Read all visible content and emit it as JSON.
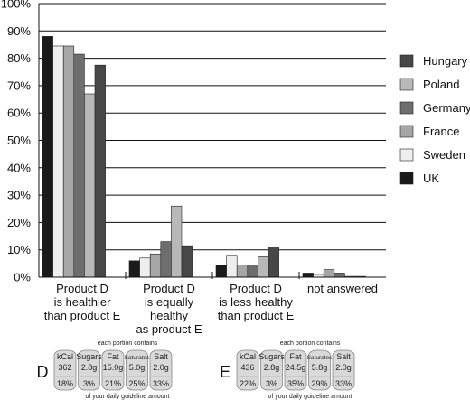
{
  "chart_data": {
    "type": "bar",
    "title": "",
    "xlabel": "",
    "ylabel": "",
    "ylim": [
      0,
      100
    ],
    "yticks": [
      "0%",
      "10%",
      "20%",
      "30%",
      "40%",
      "50%",
      "60%",
      "70%",
      "80%",
      "90%",
      "100%"
    ],
    "grid": true,
    "legend_position": "right",
    "categories": [
      [
        "Product D",
        "is healthier",
        "than product E"
      ],
      [
        "Product D",
        "is equally",
        "healthy",
        "as product E"
      ],
      [
        "Product D",
        "is less healthy",
        "than product E"
      ],
      [
        "not answered"
      ]
    ],
    "series": [
      {
        "name": "UK",
        "color": "#1a1a1a",
        "values": [
          88,
          6,
          4.5,
          1.5
        ]
      },
      {
        "name": "Sweden",
        "color": "#eeeeee",
        "values": [
          84.5,
          7,
          8,
          1
        ]
      },
      {
        "name": "France",
        "color": "#a6a6a6",
        "values": [
          84.5,
          8.5,
          4.5,
          2.8
        ]
      },
      {
        "name": "Germany",
        "color": "#6e6e6e",
        "values": [
          81.5,
          13,
          4.5,
          1.5
        ]
      },
      {
        "name": "Poland",
        "color": "#b8b8b8",
        "values": [
          67,
          26,
          7.5,
          0.3
        ]
      },
      {
        "name": "Hungary",
        "color": "#474747",
        "values": [
          77.5,
          11.5,
          11,
          0.3
        ]
      }
    ],
    "legend_order": [
      "Hungary",
      "Poland",
      "Germany",
      "France",
      "Sweden",
      "UK"
    ]
  },
  "labels": {
    "header": "each portion contains",
    "footer": "of your daily guideline amount",
    "products": [
      {
        "letter": "D",
        "items": [
          {
            "name": "kCal",
            "amount": "362",
            "percent": "18%"
          },
          {
            "name": "Sugars",
            "amount": "2.8g",
            "percent": "3%"
          },
          {
            "name": "Fat",
            "amount": "15.0g",
            "percent": "21%"
          },
          {
            "name": "Saturates",
            "amount": "5.0g",
            "percent": "25%"
          },
          {
            "name": "Salt",
            "amount": "2.0g",
            "percent": "33%"
          }
        ]
      },
      {
        "letter": "E",
        "items": [
          {
            "name": "kCal",
            "amount": "436",
            "percent": "22%"
          },
          {
            "name": "Sugars",
            "amount": "2.8g",
            "percent": "3%"
          },
          {
            "name": "Fat",
            "amount": "24.5g",
            "percent": "35%"
          },
          {
            "name": "Saturates",
            "amount": "5.8g",
            "percent": "29%"
          },
          {
            "name": "Salt",
            "amount": "2.0g",
            "percent": "33%"
          }
        ]
      }
    ]
  }
}
